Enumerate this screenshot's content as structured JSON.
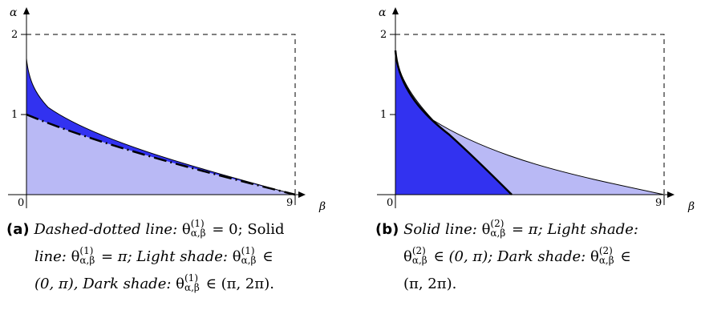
{
  "panels": [
    {
      "id": "a",
      "y_axis_label": "α",
      "x_axis_label": "β",
      "y_ticks": [
        "2",
        "1"
      ],
      "x_ticks": [
        "0",
        "9"
      ],
      "tag": "(a)",
      "caption_parts": {
        "p1": "Dashed-dotted line:",
        "v1": "= 0; Solid",
        "p2": "line:",
        "v2": "= π; Light shade:",
        "v3": "∈",
        "v4": "(0, π), Dark shade:",
        "v5": "∈ (π, 2π)."
      }
    },
    {
      "id": "b",
      "y_axis_label": "α",
      "x_axis_label": "β",
      "y_ticks": [
        "2",
        "1"
      ],
      "x_ticks": [
        "0",
        "9"
      ],
      "tag": "(b)",
      "caption_parts": {
        "p1": "Solid line:",
        "v1": "= π; Light shade:",
        "v2": "∈ (0, π); Dark shade:",
        "v3": "∈",
        "v4": "(π, 2π)."
      }
    }
  ],
  "theta_symbol": {
    "a_sup": "(1)",
    "b_sup": "(2)",
    "sub": "α,β",
    "base": "θ"
  },
  "colors": {
    "light_shade": "#b9b9f5",
    "dark_shade": "#3232f0",
    "line": "#000000"
  }
}
